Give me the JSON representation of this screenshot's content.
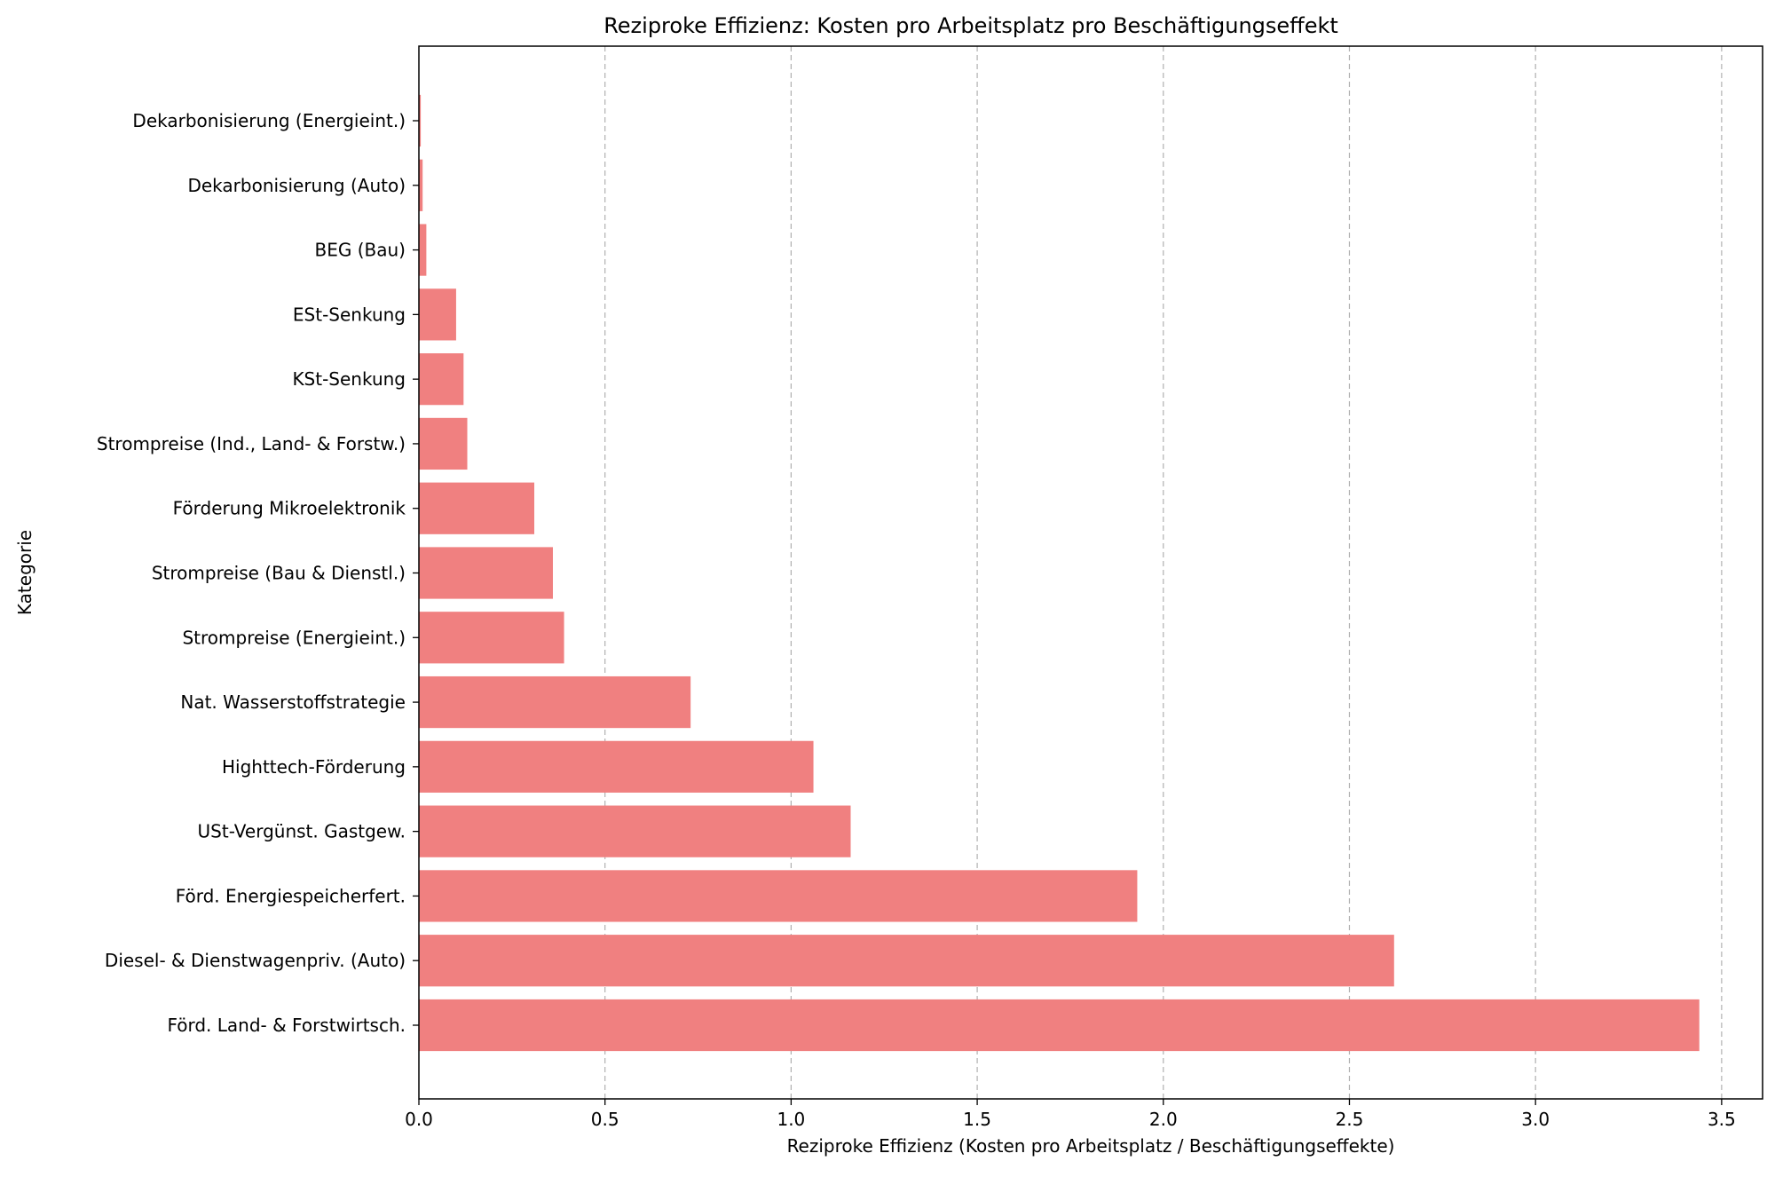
{
  "chart_data": {
    "type": "bar",
    "orientation": "horizontal",
    "title": "Reziproke Effizienz: Kosten pro Arbeitsplatz pro Beschäftigungseffekt",
    "xlabel": "Reziproke Effizienz (Kosten pro Arbeitsplatz / Beschäftigungseffekte)",
    "ylabel": "Kategorie",
    "xlim": [
      0,
      3.61
    ],
    "xticks": [
      "0.0",
      "0.5",
      "1.0",
      "1.5",
      "2.0",
      "2.5",
      "3.0",
      "3.5"
    ],
    "xtick_values": [
      0,
      0.5,
      1.0,
      1.5,
      2.0,
      2.5,
      3.0,
      3.5
    ],
    "grid": "x-axis dashed",
    "bar_color": "#f08080",
    "categories": [
      "Förd. Land- & Forstwirtsch.",
      "Diesel- & Dienstwagenpriv. (Auto)",
      "Förd. Energiespeicherfert.",
      "USt-Vergünst. Gastgew.",
      "Highttech-Förderung",
      "Nat. Wasserstoffstrategie",
      "Strompreise (Energieint.)",
      "Strompreise (Bau & Dienstl.)",
      "Förderung Mikroelektronik",
      "Strompreise (Ind., Land- & Forstw.)",
      "KSt-Senkung",
      "ESt-Senkung",
      "BEG (Bau)",
      "Dekarbonisierung (Auto)",
      "Dekarbonisierung (Energieint.)"
    ],
    "values": [
      3.44,
      2.62,
      1.93,
      1.16,
      1.06,
      0.73,
      0.39,
      0.36,
      0.31,
      0.13,
      0.12,
      0.1,
      0.02,
      0.01,
      0.005
    ]
  }
}
